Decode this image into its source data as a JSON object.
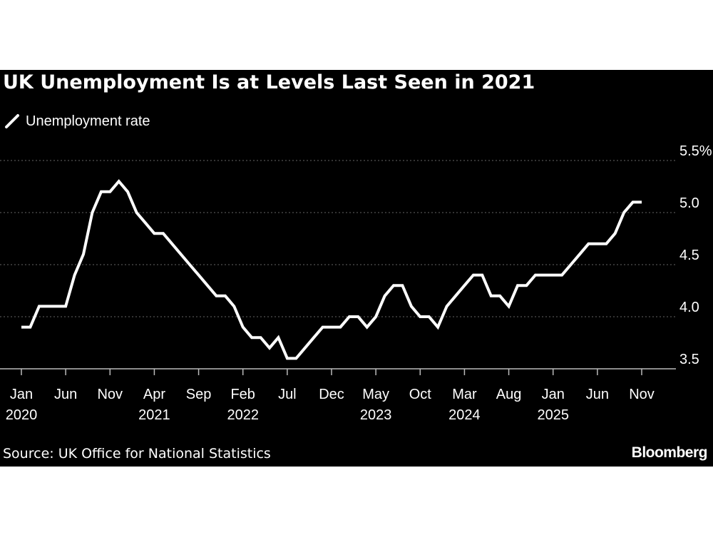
{
  "title": "UK Unemployment Is at Levels Last Seen in 2021",
  "legend": {
    "label": "Unemployment rate",
    "icon": "slash-line-icon"
  },
  "source": "Source: UK Office for National Statistics",
  "brand": "Bloomberg",
  "colors": {
    "background": "#000000",
    "line": "#ffffff",
    "grid": "#666666",
    "text": "#ffffff"
  },
  "chart_data": {
    "type": "line",
    "title": "UK Unemployment Is at Levels Last Seen in 2021",
    "series": [
      {
        "name": "Unemployment rate",
        "x": [
          "2020-01",
          "2020-02",
          "2020-03",
          "2020-04",
          "2020-05",
          "2020-06",
          "2020-07",
          "2020-08",
          "2020-09",
          "2020-10",
          "2020-11",
          "2020-12",
          "2021-01",
          "2021-02",
          "2021-03",
          "2021-04",
          "2021-05",
          "2021-06",
          "2021-07",
          "2021-08",
          "2021-09",
          "2021-10",
          "2021-11",
          "2021-12",
          "2022-01",
          "2022-02",
          "2022-03",
          "2022-04",
          "2022-05",
          "2022-06",
          "2022-07",
          "2022-08",
          "2022-09",
          "2022-10",
          "2022-11",
          "2022-12",
          "2023-01",
          "2023-02",
          "2023-03",
          "2023-04",
          "2023-05",
          "2023-06",
          "2023-07",
          "2023-08",
          "2023-09",
          "2023-10",
          "2023-11",
          "2023-12",
          "2024-01",
          "2024-02",
          "2024-03",
          "2024-04",
          "2024-05",
          "2024-06",
          "2024-07",
          "2024-08",
          "2024-09",
          "2024-10",
          "2024-11",
          "2024-12",
          "2025-01",
          "2025-02",
          "2025-03",
          "2025-04",
          "2025-05",
          "2025-06",
          "2025-07",
          "2025-08",
          "2025-09",
          "2025-10",
          "2025-11"
        ],
        "values": [
          3.9,
          3.9,
          4.1,
          4.1,
          4.1,
          4.1,
          4.4,
          4.6,
          5.0,
          5.2,
          5.2,
          5.3,
          5.2,
          5.0,
          4.9,
          4.8,
          4.8,
          4.7,
          4.6,
          4.5,
          4.4,
          4.3,
          4.2,
          4.2,
          4.1,
          3.9,
          3.8,
          3.8,
          3.7,
          3.8,
          3.6,
          3.6,
          3.7,
          3.8,
          3.9,
          3.9,
          3.9,
          4.0,
          4.0,
          3.9,
          4.0,
          4.2,
          4.3,
          4.3,
          4.1,
          4.0,
          4.0,
          3.9,
          4.1,
          4.2,
          4.3,
          4.4,
          4.4,
          4.2,
          4.2,
          4.1,
          4.3,
          4.3,
          4.4,
          4.4,
          4.4,
          4.4,
          4.5,
          4.6,
          4.7,
          4.7,
          4.7,
          4.8,
          5.0,
          5.1,
          5.1
        ]
      }
    ],
    "x_ticks": [
      {
        "month": "Jan",
        "year": "2020",
        "date": "2020-01"
      },
      {
        "month": "Jun",
        "year": "",
        "date": "2020-06"
      },
      {
        "month": "Nov",
        "year": "",
        "date": "2020-11"
      },
      {
        "month": "Apr",
        "year": "2021",
        "date": "2021-04"
      },
      {
        "month": "Sep",
        "year": "",
        "date": "2021-09"
      },
      {
        "month": "Feb",
        "year": "2022",
        "date": "2022-02"
      },
      {
        "month": "Jul",
        "year": "",
        "date": "2022-07"
      },
      {
        "month": "Dec",
        "year": "",
        "date": "2022-12"
      },
      {
        "month": "May",
        "year": "2023",
        "date": "2023-05"
      },
      {
        "month": "Oct",
        "year": "",
        "date": "2023-10"
      },
      {
        "month": "Mar",
        "year": "2024",
        "date": "2024-03"
      },
      {
        "month": "Aug",
        "year": "",
        "date": "2024-08"
      },
      {
        "month": "Jan",
        "year": "2025",
        "date": "2025-01"
      },
      {
        "month": "Jun",
        "year": "",
        "date": "2025-06"
      },
      {
        "month": "Nov",
        "year": "",
        "date": "2025-11"
      }
    ],
    "y_ticks": [
      {
        "value": 3.5,
        "label": "3.5"
      },
      {
        "value": 4.0,
        "label": "4.0"
      },
      {
        "value": 4.5,
        "label": "4.5"
      },
      {
        "value": 5.0,
        "label": "5.0"
      },
      {
        "value": 5.5,
        "label": "5.5%"
      }
    ],
    "xlabel": "",
    "ylabel": "",
    "ylim": [
      3.5,
      5.5
    ],
    "y_axis_position": "right",
    "grid": true,
    "legend_position": "top-left"
  }
}
